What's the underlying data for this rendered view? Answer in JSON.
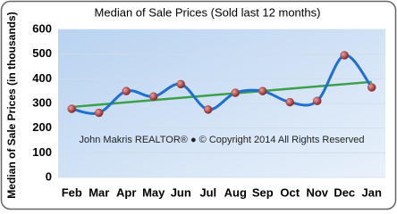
{
  "chart_data": {
    "type": "line",
    "title": "Median of Sale Prices (Sold last 12 months)",
    "y_label": "Median of Sale Prices (in thousands)",
    "annotation": "John Makris REALTOR®  ●  © Copyright 2014 All Rights Reserved",
    "categories": [
      "Feb",
      "Mar",
      "Apr",
      "May",
      "Jun",
      "Jul",
      "Aug",
      "Sep",
      "Oct",
      "Nov",
      "Dec",
      "Jan"
    ],
    "series": [
      {
        "name": "Median of Sale Prices",
        "color": "#1f6fd0",
        "values": [
          278,
          262,
          350,
          328,
          378,
          275,
          343,
          350,
          305,
          310,
          495,
          365
        ]
      }
    ],
    "trendline": true,
    "trend_color": "#3aa04a",
    "marker_color": "#a33a3a",
    "ylim": [
      0,
      600
    ],
    "yticks": [
      0,
      100,
      200,
      300,
      400,
      500,
      600
    ],
    "grid": true
  }
}
